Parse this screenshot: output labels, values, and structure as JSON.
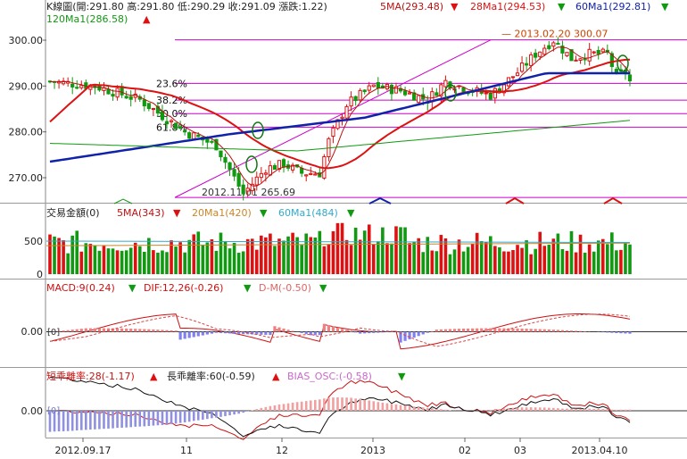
{
  "header": {
    "ohlc": "K線圖(開:291.80 高:291.80 低:290.29 收:291.09 漲跌:1.22)",
    "ma5": "5MA(293.48)",
    "ma28": "28Ma1(294.53)",
    "ma60": "60Ma1(292.81)",
    "ma120": "120Ma1(286.58)"
  },
  "volume_header": {
    "title": "交易金額(0)",
    "ma5": "5MA(343)",
    "ma20": "20Ma1(420)",
    "ma60": "60Ma1(484)"
  },
  "macd_header": {
    "macd": "MACD:9(0.24)",
    "dif": "DIF:12,26(-0.26)",
    "dm": "D-M(-0.50)"
  },
  "bias_header": {
    "short": "短乖離率:28(-1.17)",
    "long": "長乖離率:60(-0.59)",
    "osc": "BIAS_OSC:(-0.58)"
  },
  "colors": {
    "up": "#dd1111",
    "down": "#119911",
    "ma5": "#bb1111",
    "ma28": "#dd1111",
    "ma60": "#1122aa",
    "ma120": "#119911",
    "fib": "#cc00cc",
    "ma20_vol": "#c8862a",
    "ma60_vol": "#33aacc",
    "hist_pos": "#f08080",
    "hist_neg": "#8080ee"
  },
  "chart_data": [
    {
      "type": "candlestick",
      "yticks": [
        "300.00",
        "290.00",
        "280.00",
        "270.00"
      ],
      "ylim": [
        264,
        302
      ],
      "x_labels": [
        "2012.09.17",
        "11",
        "12",
        "2013",
        "02",
        "03",
        "2013.04.10"
      ],
      "fib_levels": [
        {
          "label": "23.6%",
          "value": 290.58
        },
        {
          "label": "38.2%",
          "value": 286.93
        },
        {
          "label": "50.0%",
          "value": 283.98
        },
        {
          "label": "61.8%",
          "value": 281.03
        }
      ],
      "annotations": [
        {
          "label": "2013.02.20  300.07",
          "value": 300.07
        },
        {
          "label": "2012.11.01  265.69",
          "value": 265.69
        }
      ],
      "markers": {
        "zero": "[0]"
      }
    },
    {
      "type": "bar",
      "name": "volume",
      "yticks": [
        "500",
        "0"
      ],
      "ylim": [
        0,
        950
      ]
    },
    {
      "type": "line",
      "name": "macd",
      "yticks": [
        "0.00"
      ],
      "zero_label": "[0]"
    },
    {
      "type": "line",
      "name": "bias",
      "yticks": [
        "0.00"
      ],
      "zero_label": "[0]"
    }
  ]
}
